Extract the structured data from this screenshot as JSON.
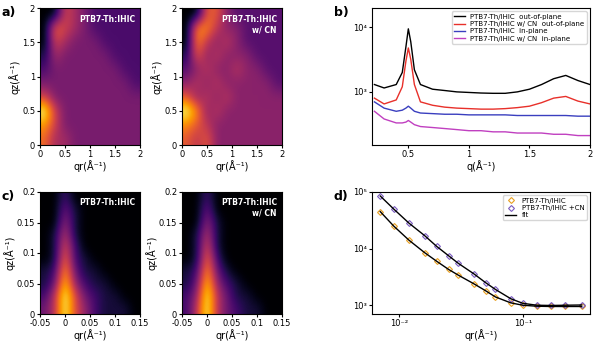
{
  "chart_data": [
    {
      "type": "heatmap",
      "annotation": "a)",
      "title": "PTB7-Th:IHIC",
      "x_label": "qr(Å⁻¹)",
      "y_label": "qz(Å⁻¹)",
      "xlim": [
        0,
        2
      ],
      "ylim": [
        0,
        2
      ],
      "xticks": [
        0,
        0.5,
        1,
        1.5,
        2
      ],
      "yticks": [
        0,
        0.5,
        1,
        1.5,
        2
      ],
      "cells": [
        [
          6,
          4,
          4,
          3,
          3,
          3,
          3,
          3,
          3,
          3
        ],
        [
          7,
          5,
          3,
          3,
          3,
          3,
          3,
          3,
          3,
          3
        ],
        [
          9,
          5,
          3,
          3,
          3,
          3,
          3,
          3,
          3,
          3
        ],
        [
          5,
          3,
          3,
          3,
          3,
          3,
          3,
          3,
          3,
          3
        ],
        [
          3,
          3,
          3,
          3,
          3,
          3,
          3,
          3,
          3,
          2
        ],
        [
          2,
          3,
          3,
          3,
          3,
          3,
          3,
          3,
          2,
          2
        ],
        [
          1,
          4,
          3,
          3,
          3,
          3,
          3,
          2,
          2,
          2
        ],
        [
          0,
          5,
          4,
          3,
          3,
          3,
          2,
          2,
          2,
          2
        ],
        [
          0,
          6,
          5,
          4,
          3,
          2,
          2,
          2,
          2,
          2
        ],
        [
          0,
          0,
          5,
          4,
          3,
          2,
          2,
          2,
          2,
          2
        ]
      ]
    },
    {
      "type": "heatmap",
      "title": "PTB7-Th:IHIC\nw/ CN",
      "x_label": "qr(Å⁻¹)",
      "y_label": "qz(Å⁻¹)",
      "xlim": [
        0,
        2
      ],
      "ylim": [
        0,
        2
      ],
      "xticks": [
        0,
        0.5,
        1,
        1.5,
        2
      ],
      "yticks": [
        0,
        0.5,
        1,
        1.5,
        2
      ],
      "cells": [
        [
          5,
          4,
          5,
          3,
          3,
          3,
          3,
          3,
          3,
          3
        ],
        [
          6,
          5,
          4,
          3,
          3,
          3,
          3,
          3,
          3,
          3
        ],
        [
          8,
          6,
          3,
          4,
          3,
          3,
          3,
          3,
          3,
          3
        ],
        [
          5,
          3,
          4,
          3,
          4,
          3,
          3,
          3,
          3,
          3
        ],
        [
          3,
          4,
          3,
          4,
          3,
          3,
          3,
          3,
          3,
          2
        ],
        [
          2,
          3,
          4,
          3,
          3,
          4,
          3,
          3,
          2,
          2
        ],
        [
          1,
          5,
          3,
          4,
          3,
          3,
          3,
          2,
          2,
          2
        ],
        [
          0,
          6,
          4,
          3,
          4,
          3,
          2,
          2,
          2,
          2
        ],
        [
          0,
          6,
          6,
          4,
          3,
          3,
          2,
          2,
          2,
          2
        ],
        [
          0,
          0,
          5,
          5,
          3,
          2,
          2,
          2,
          2,
          2
        ]
      ]
    },
    {
      "type": "line",
      "annotation": "b)",
      "x_label": "q(Å⁻¹)",
      "log": "y",
      "xlim": [
        0.2,
        2
      ],
      "ylim": [
        150,
        20000
      ],
      "xticks": [
        0.5,
        1,
        1.5,
        2
      ],
      "yticks": [
        {
          "value": 1000,
          "label": "10³"
        },
        {
          "value": 10000,
          "label": "10⁴"
        }
      ],
      "legend": "upper right",
      "x": [
        0.22,
        0.3,
        0.4,
        0.45,
        0.48,
        0.5,
        0.52,
        0.55,
        0.6,
        0.7,
        0.8,
        0.9,
        1.0,
        1.1,
        1.2,
        1.3,
        1.4,
        1.5,
        1.6,
        1.7,
        1.8,
        1.9,
        2.0
      ],
      "series": [
        {
          "name": "PTB7-Th/IHIC  out-of-plane",
          "color": "#000000",
          "values": [
            1300,
            1150,
            1300,
            2000,
            5000,
            9500,
            6000,
            2200,
            1300,
            1100,
            1050,
            1000,
            980,
            960,
            950,
            950,
            1000,
            1100,
            1300,
            1600,
            1800,
            1500,
            1300
          ]
        },
        {
          "name": "PTB7-Th/IHIC w/ CN  out-of-plane",
          "color": "#e8302a",
          "values": [
            800,
            650,
            750,
            1200,
            3000,
            4800,
            3200,
            1300,
            700,
            620,
            580,
            560,
            550,
            540,
            540,
            550,
            570,
            600,
            680,
            800,
            850,
            720,
            650
          ]
        },
        {
          "name": "PTB7-Th/IHIC  in-plane",
          "color": "#3a3fbf",
          "values": [
            700,
            560,
            500,
            520,
            560,
            600,
            560,
            500,
            470,
            460,
            450,
            450,
            440,
            440,
            440,
            440,
            430,
            430,
            430,
            430,
            430,
            420,
            420
          ]
        },
        {
          "name": "PTB7-Th/IHIC w/ CN  in-plane",
          "color": "#c040c0",
          "values": [
            500,
            380,
            330,
            330,
            340,
            360,
            340,
            310,
            290,
            280,
            270,
            260,
            250,
            250,
            240,
            240,
            230,
            230,
            230,
            220,
            220,
            210,
            210
          ]
        }
      ]
    },
    {
      "type": "heatmap",
      "annotation": "c)",
      "title": "PTB7-Th:IHIC",
      "x_label": "qr(Å⁻¹)",
      "y_label": "qz(Å⁻¹)",
      "xlim": [
        -0.05,
        0.15
      ],
      "ylim": [
        0,
        0.2
      ],
      "xticks": [
        -0.05,
        0,
        0.05,
        0.1,
        0.15
      ],
      "yticks": [
        0,
        0.05,
        0.1,
        0.15,
        0.2
      ],
      "cells": [
        [
          3,
          5,
          10,
          6,
          4,
          2,
          1,
          1,
          1,
          0
        ],
        [
          2,
          5,
          10,
          6,
          3,
          2,
          1,
          1,
          0,
          0
        ],
        [
          1,
          3,
          9,
          4,
          2,
          1,
          1,
          0,
          0,
          0
        ],
        [
          1,
          2,
          8,
          3,
          1,
          1,
          0,
          0,
          0,
          0
        ],
        [
          0,
          1,
          7,
          2,
          1,
          0,
          0,
          0,
          0,
          0
        ],
        [
          0,
          1,
          6,
          2,
          0,
          0,
          0,
          0,
          0,
          0
        ],
        [
          0,
          1,
          5,
          1,
          0,
          0,
          0,
          0,
          0,
          0
        ],
        [
          0,
          0,
          4,
          1,
          0,
          0,
          0,
          0,
          0,
          0
        ],
        [
          0,
          0,
          3,
          1,
          0,
          0,
          0,
          0,
          0,
          0
        ],
        [
          0,
          0,
          2,
          0,
          0,
          0,
          0,
          0,
          0,
          0
        ]
      ]
    },
    {
      "type": "heatmap",
      "title": "PTB7-Th:IHIC\nw/ CN",
      "x_label": "qr(Å⁻¹)",
      "y_label": "qz(Å⁻¹)",
      "xlim": [
        -0.05,
        0.15
      ],
      "ylim": [
        0,
        0.2
      ],
      "xticks": [
        -0.05,
        0,
        0.05,
        0.1,
        0.15
      ],
      "yticks": [
        0,
        0.05,
        0.1,
        0.15,
        0.2
      ],
      "cells": [
        [
          2,
          5,
          10,
          5,
          3,
          2,
          1,
          1,
          0,
          0
        ],
        [
          2,
          4,
          10,
          5,
          3,
          1,
          1,
          0,
          0,
          0
        ],
        [
          1,
          3,
          9,
          4,
          2,
          1,
          0,
          0,
          0,
          0
        ],
        [
          1,
          2,
          8,
          3,
          1,
          0,
          0,
          0,
          0,
          0
        ],
        [
          0,
          1,
          7,
          2,
          0,
          0,
          0,
          0,
          0,
          0
        ],
        [
          0,
          1,
          6,
          1,
          0,
          0,
          0,
          0,
          0,
          0
        ],
        [
          0,
          1,
          5,
          1,
          0,
          0,
          0,
          0,
          0,
          0
        ],
        [
          0,
          0,
          4,
          1,
          0,
          0,
          0,
          0,
          0,
          0
        ],
        [
          0,
          0,
          3,
          0,
          0,
          0,
          0,
          0,
          0,
          0
        ],
        [
          0,
          0,
          2,
          0,
          0,
          0,
          0,
          0,
          0,
          0
        ]
      ]
    },
    {
      "type": "scatter",
      "annotation": "d)",
      "x_label": "qr(Å⁻¹)",
      "log": true,
      "xlim": [
        0.006,
        0.35
      ],
      "ylim": [
        700,
        100000
      ],
      "xticks": [
        {
          "value": 0.01,
          "label": "10⁻²"
        },
        {
          "value": 0.1,
          "label": "10⁻¹"
        }
      ],
      "yticks": [
        {
          "value": 1000,
          "label": "10³"
        },
        {
          "value": 10000,
          "label": "10⁴"
        },
        {
          "value": 100000,
          "label": "10⁵"
        }
      ],
      "legend": "upper right",
      "x": [
        0.007,
        0.009,
        0.012,
        0.016,
        0.02,
        0.025,
        0.03,
        0.04,
        0.05,
        0.06,
        0.08,
        0.1,
        0.13,
        0.17,
        0.22,
        0.3
      ],
      "series": [
        {
          "name": "PTB7-Th/IHIC",
          "color": "#e8a020",
          "marker": "diamond",
          "values": [
            45000,
            25000,
            14000,
            8500,
            6000,
            4300,
            3400,
            2400,
            1800,
            1400,
            1100,
            1000,
            960,
            950,
            950,
            950
          ]
        },
        {
          "name": "PTB7-Th/IHIC +CN",
          "color": "#7a5bc0",
          "marker": "diamond",
          "values": [
            85000,
            50000,
            28000,
            17000,
            11000,
            7500,
            5500,
            3600,
            2500,
            1900,
            1300,
            1080,
            1000,
            990,
            1000,
            1010
          ]
        },
        {
          "name": "fit",
          "color": "#000000",
          "type": "line",
          "line_style": "solid",
          "values": [
            45000,
            25000,
            14000,
            8500,
            6000,
            4300,
            3400,
            2400,
            1800,
            1400,
            1100,
            1000,
            960,
            950,
            950,
            950
          ]
        },
        {
          "color": "#000000",
          "type": "line",
          "line_style": "solid",
          "values": [
            85000,
            50000,
            28000,
            17000,
            11000,
            7500,
            5500,
            3600,
            2500,
            1900,
            1300,
            1080,
            1000,
            990,
            1000,
            1010
          ]
        }
      ]
    }
  ]
}
